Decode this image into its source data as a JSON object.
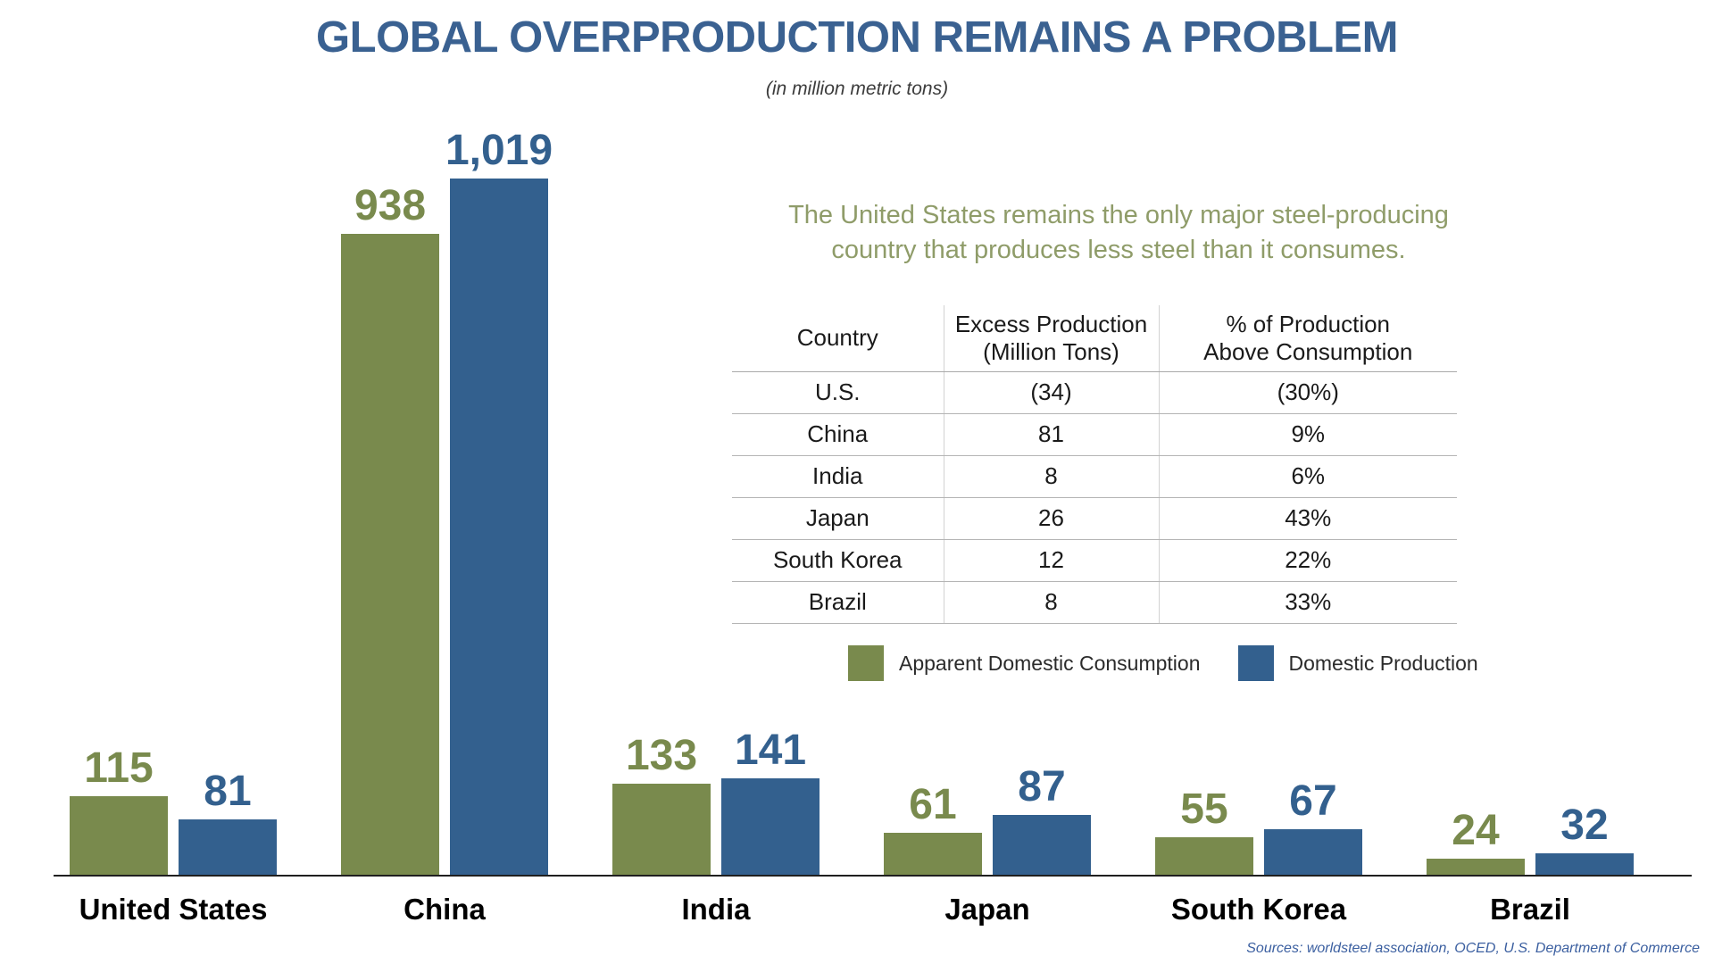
{
  "title": "GLOBAL OVERPRODUCTION REMAINS A PROBLEM",
  "subtitle": "(in million metric tons)",
  "callout": "The United States remains the only major steel-producing country that produces less steel than it consumes.",
  "colors": {
    "title_blue": "#3A6191",
    "bar_green": "#798A4D",
    "bar_blue": "#33608E",
    "callout_green": "#8F9C69",
    "source_blue": "#3B5FA0"
  },
  "table": {
    "headers": [
      "Country",
      "Excess Production\n(Million Tons)",
      "% of Production\nAbove Consumption"
    ],
    "rows": [
      [
        "U.S.",
        "(34)",
        "(30%)"
      ],
      [
        "China",
        "81",
        "9%"
      ],
      [
        "India",
        "8",
        "6%"
      ],
      [
        "Japan",
        "26",
        "43%"
      ],
      [
        "South Korea",
        "12",
        "22%"
      ],
      [
        "Brazil",
        "8",
        "33%"
      ]
    ]
  },
  "legend": [
    {
      "label": "Apparent Domestic Consumption",
      "color": "#798A4D"
    },
    {
      "label": "Domestic Production",
      "color": "#33608E"
    }
  ],
  "source": "Sources: worldsteel association, OCED, U.S. Department of Commerce",
  "chart_data": {
    "type": "bar",
    "categories": [
      "United States",
      "China",
      "India",
      "Japan",
      "South Korea",
      "Brazil"
    ],
    "series": [
      {
        "name": "Apparent Domestic Consumption",
        "color": "#798A4D",
        "values": [
          115,
          938,
          133,
          61,
          55,
          24
        ]
      },
      {
        "name": "Domestic Production",
        "color": "#33608E",
        "values": [
          81,
          1019,
          141,
          87,
          67,
          32
        ]
      }
    ],
    "title": "GLOBAL OVERPRODUCTION REMAINS A PROBLEM",
    "xlabel": "",
    "ylabel": "million metric tons",
    "ylim": [
      0,
      1019
    ],
    "grid": false,
    "axis_labels_shown": false,
    "data_labels": "above bars",
    "legend_position": "middle-right"
  }
}
